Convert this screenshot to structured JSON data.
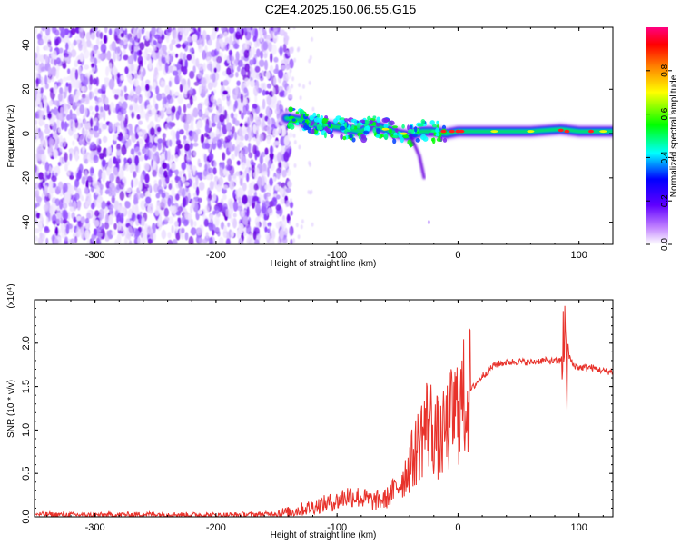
{
  "title": "C2E4.2025.150.06.55.G15",
  "chart_data": [
    {
      "type": "heatmap",
      "xlabel": "Height of straight line (km)",
      "ylabel": "Frequency (Hz)",
      "xlim": [
        -350,
        128
      ],
      "ylim": [
        -50,
        48
      ],
      "xticks": [
        -300,
        -200,
        -100,
        0,
        100
      ],
      "yticks": [
        -40,
        -20,
        0,
        20,
        40
      ],
      "colorbar": {
        "label": "Normalized spectral amplitude",
        "range": [
          0,
          1
        ],
        "ticks": [
          "0.0",
          "0.2",
          "0.4",
          "0.6",
          "0.8"
        ],
        "tick_values": [
          0,
          0.2,
          0.4,
          0.6,
          0.8
        ],
        "colors": [
          "#ffffff",
          "#8000ff",
          "#0000ff",
          "#00ffff",
          "#00ff00",
          "#ffff00",
          "#ff8000",
          "#ff0000",
          "#ff0080"
        ]
      },
      "regions": [
        {
          "description": "broadband noise",
          "x": [
            -350,
            -142
          ],
          "freq_range": [
            -50,
            48
          ],
          "amplitude": 0.15
        },
        {
          "description": "Doppler trace",
          "trace": [
            [
              -142,
              7
            ],
            [
              -130,
              6
            ],
            [
              -115,
              4
            ],
            [
              -100,
              3
            ],
            [
              -90,
              2
            ],
            [
              -80,
              1
            ],
            [
              -70,
              4
            ],
            [
              -60,
              2
            ],
            [
              -50,
              0
            ],
            [
              -40,
              -1
            ],
            [
              -30,
              1
            ],
            [
              -20,
              1
            ],
            [
              -10,
              0
            ],
            [
              0,
              1
            ],
            [
              20,
              1
            ],
            [
              60,
              1
            ],
            [
              85,
              2
            ],
            [
              100,
              1
            ],
            [
              128,
              1
            ]
          ]
        }
      ],
      "grid": false
    },
    {
      "type": "line",
      "xlabel": "Height of straight line (km)",
      "ylabel": "SNR (10 * v/v)",
      "y_multiplier_label": "(x10⁴)",
      "xlim": [
        -350,
        128
      ],
      "ylim": [
        0,
        2.5
      ],
      "xticks": [
        -300,
        -200,
        -100,
        0,
        100
      ],
      "yticks": [
        "0.0",
        "0.5",
        "1.0",
        "1.5",
        "2.0"
      ],
      "ytick_values": [
        0,
        0.5,
        1.0,
        1.5,
        2.0
      ],
      "color": "#e8322b",
      "series": [
        {
          "x": [
            -350,
            -300,
            -250,
            -200,
            -160,
            -140,
            -125,
            -110,
            -100,
            -90,
            -80,
            -70,
            -60,
            -50,
            -45,
            -40,
            -35,
            -30,
            -25,
            -20,
            -15,
            -10,
            -5,
            0,
            5,
            10,
            20,
            30,
            40,
            50,
            60,
            70,
            80,
            85,
            88,
            90,
            92,
            95,
            100,
            110,
            120,
            128
          ],
          "y": [
            0.03,
            0.02,
            0.03,
            0.02,
            0.03,
            0.05,
            0.1,
            0.15,
            0.18,
            0.25,
            0.22,
            0.18,
            0.2,
            0.35,
            0.45,
            0.6,
            0.75,
            0.95,
            1.1,
            1.0,
            0.85,
            1.0,
            1.15,
            1.25,
            1.35,
            1.45,
            1.62,
            1.75,
            1.78,
            1.79,
            1.78,
            1.8,
            1.79,
            1.8,
            2.1,
            1.5,
            1.85,
            1.75,
            1.72,
            1.72,
            1.68,
            1.67
          ]
        }
      ],
      "grid": false
    }
  ]
}
